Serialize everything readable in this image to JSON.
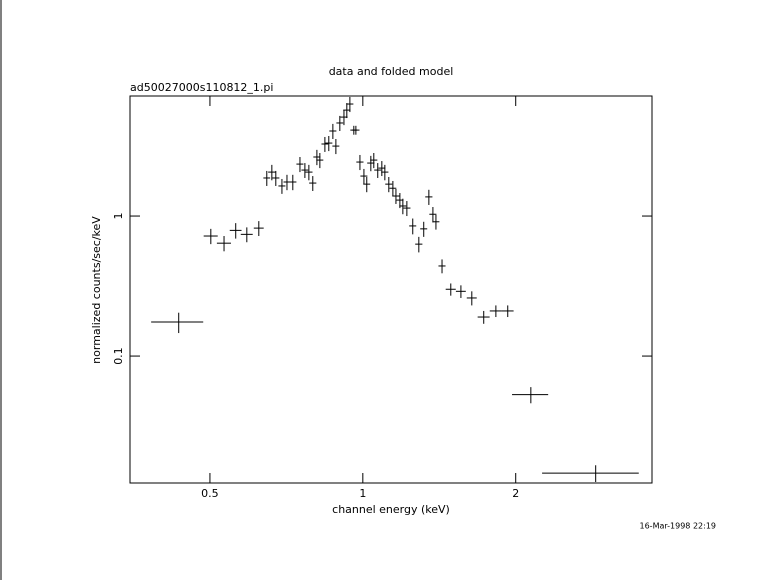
{
  "chart_data": {
    "type": "errorbar",
    "title": "data and folded model",
    "subtitle": "ad50027000s110812_1.pi",
    "xlabel": "channel energy (keV)",
    "ylabel": "normalized counts/sec/keV",
    "timestamp": "16-Mar-1998 22:19",
    "xscale": "log",
    "yscale": "log",
    "xlim": [
      0.348,
      3.71
    ],
    "ylim": [
      0.0124,
      7.2
    ],
    "xticks": [
      0.5,
      1,
      2
    ],
    "yticks": [
      0.1,
      1
    ],
    "color": "#000000",
    "x": [
      0.434,
      0.502,
      0.533,
      0.562,
      0.591,
      0.624,
      0.647,
      0.662,
      0.674,
      0.693,
      0.709,
      0.728,
      0.752,
      0.769,
      0.783,
      0.797,
      0.812,
      0.823,
      0.842,
      0.857,
      0.873,
      0.885,
      0.901,
      0.918,
      0.93,
      0.943,
      0.96,
      0.969,
      0.987,
      1.005,
      1.018,
      1.037,
      1.051,
      1.07,
      1.09,
      1.105,
      1.125,
      1.146,
      1.162,
      1.183,
      1.199,
      1.221,
      1.254,
      1.289,
      1.318,
      1.349,
      1.374,
      1.393,
      1.432,
      1.49,
      1.56,
      1.639,
      1.73,
      1.828,
      1.929,
      2.142,
      2.874
    ],
    "xerr": [
      0.051,
      0.016,
      0.017,
      0.015,
      0.016,
      0.014,
      0.01,
      0.011,
      0.011,
      0.011,
      0.011,
      0.012,
      0.012,
      0.012,
      0.013,
      0.013,
      0.013,
      0.013,
      0.013,
      0.014,
      0.014,
      0.014,
      0.014,
      0.015,
      0.015,
      0.015,
      0.015,
      0.016,
      0.016,
      0.016,
      0.016,
      0.017,
      0.017,
      0.017,
      0.017,
      0.018,
      0.018,
      0.018,
      0.019,
      0.019,
      0.019,
      0.02,
      0.02,
      0.021,
      0.021,
      0.022,
      0.022,
      0.022,
      0.023,
      0.034,
      0.035,
      0.037,
      0.047,
      0.05,
      0.052,
      0.175,
      0.62
    ],
    "values": [
      0.175,
      0.72,
      0.64,
      0.79,
      0.74,
      0.82,
      1.87,
      2.06,
      1.87,
      1.64,
      1.75,
      1.75,
      2.35,
      2.13,
      2.06,
      1.72,
      2.64,
      2.51,
      3.27,
      3.32,
      4.05,
      3.16,
      4.62,
      5.09,
      5.71,
      6.31,
      4.11,
      4.11,
      2.43,
      1.93,
      1.69,
      2.39,
      2.51,
      2.13,
      2.2,
      2.06,
      1.69,
      1.58,
      1.39,
      1.3,
      1.18,
      1.14,
      0.85,
      0.63,
      0.81,
      1.37,
      1.03,
      0.91,
      0.44,
      0.3,
      0.29,
      0.26,
      0.19,
      0.21,
      0.21,
      0.053,
      0.0146
    ],
    "yerr": [
      0.029,
      0.09,
      0.08,
      0.1,
      0.09,
      0.1,
      0.23,
      0.26,
      0.23,
      0.2,
      0.22,
      0.22,
      0.29,
      0.26,
      0.26,
      0.21,
      0.33,
      0.31,
      0.4,
      0.41,
      0.5,
      0.39,
      0.57,
      0.63,
      0.7,
      0.78,
      0.3,
      0.3,
      0.3,
      0.24,
      0.21,
      0.3,
      0.31,
      0.26,
      0.27,
      0.26,
      0.21,
      0.2,
      0.17,
      0.16,
      0.15,
      0.14,
      0.11,
      0.08,
      0.1,
      0.17,
      0.13,
      0.11,
      0.05,
      0.03,
      0.03,
      0.03,
      0.02,
      0.02,
      0.02,
      0.007,
      0.002
    ]
  }
}
